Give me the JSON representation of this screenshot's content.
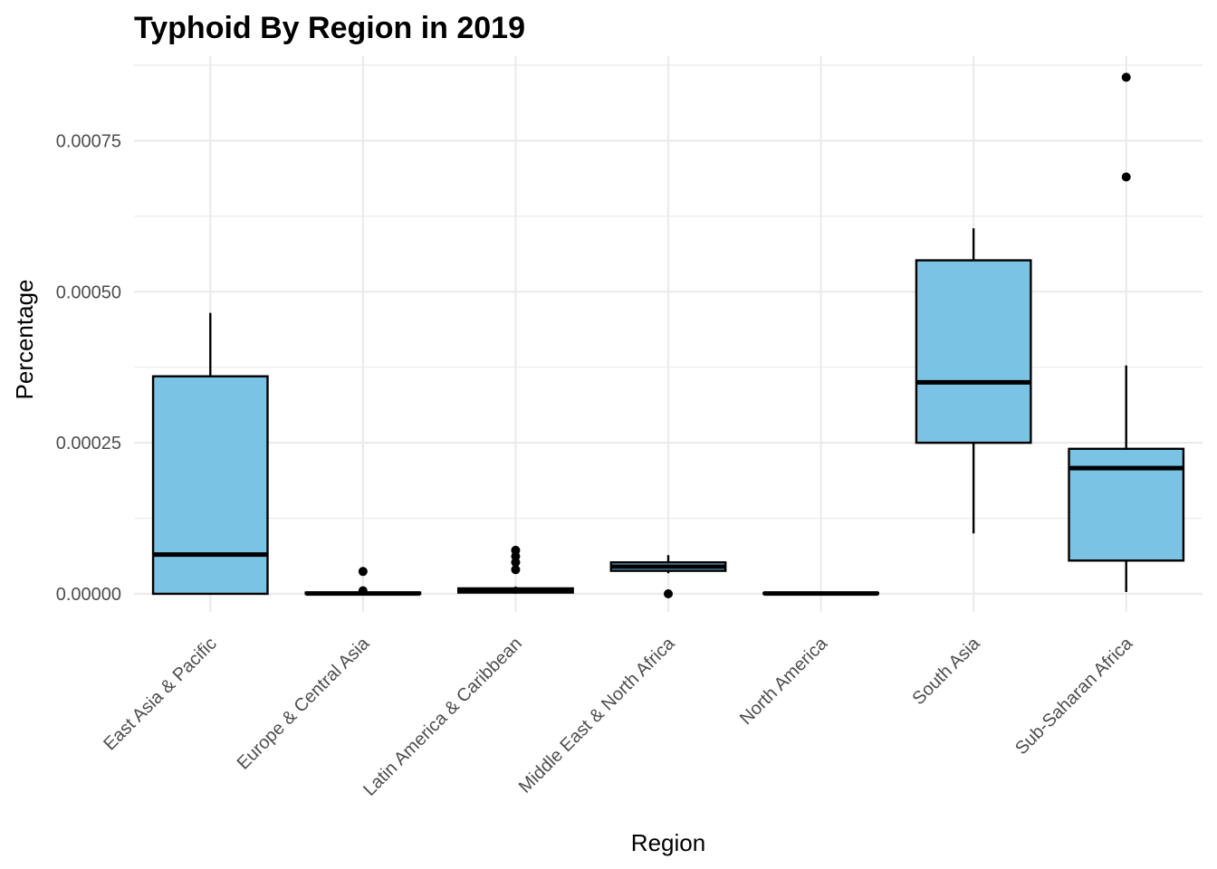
{
  "chart_data": {
    "type": "boxplot",
    "title": "Typhoid By Region in 2019",
    "xlabel": "Region",
    "ylabel": "Percentage",
    "ylim": [
      -3e-05,
      0.00089
    ],
    "yticks": [
      0,
      0.00025,
      0.0005,
      0.00075
    ],
    "ytick_labels": [
      "0.00000",
      "0.00025",
      "0.00050",
      "0.00075"
    ],
    "grid": true,
    "box_fill": "#7bc3e4",
    "box_stroke": "#000000",
    "categories": [
      "East Asia & Pacific",
      "Europe & Central Asia",
      "Latin America & Caribbean",
      "Middle East & North Africa",
      "North America",
      "South Asia",
      "Sub-Saharan Africa"
    ],
    "boxes": [
      {
        "category": "East Asia & Pacific",
        "min": 0.0,
        "q1": 0.0,
        "median": 6.5e-05,
        "q3": 0.00036,
        "max": 0.000465,
        "outliers": []
      },
      {
        "category": "Europe & Central Asia",
        "min": 0.0,
        "q1": 0.0,
        "median": 5e-07,
        "q3": 2e-06,
        "max": 4e-06,
        "outliers": [
          3.7e-05,
          5e-06
        ]
      },
      {
        "category": "Latin America & Caribbean",
        "min": 0.0,
        "q1": 2e-06,
        "median": 6e-06,
        "q3": 9e-06,
        "max": 1.2e-05,
        "outliers": [
          7.2e-05,
          6.2e-05,
          5.2e-05,
          4e-05
        ]
      },
      {
        "category": "Middle East & North Africa",
        "min": 3.4e-05,
        "q1": 3.8e-05,
        "median": 4.5e-05,
        "q3": 5.2e-05,
        "max": 6.4e-05,
        "outliers": [
          0.0
        ]
      },
      {
        "category": "North America",
        "min": 0.0,
        "q1": 0.0,
        "median": 5e-07,
        "q3": 1.5e-06,
        "max": 2e-06,
        "outliers": []
      },
      {
        "category": "South Asia",
        "min": 0.0001,
        "q1": 0.00025,
        "median": 0.00035,
        "q3": 0.000552,
        "max": 0.000605,
        "outliers": []
      },
      {
        "category": "Sub-Saharan Africa",
        "min": 3e-06,
        "q1": 5.5e-05,
        "median": 0.000208,
        "q3": 0.00024,
        "max": 0.000378,
        "outliers": [
          0.000855,
          0.00069
        ]
      }
    ]
  }
}
